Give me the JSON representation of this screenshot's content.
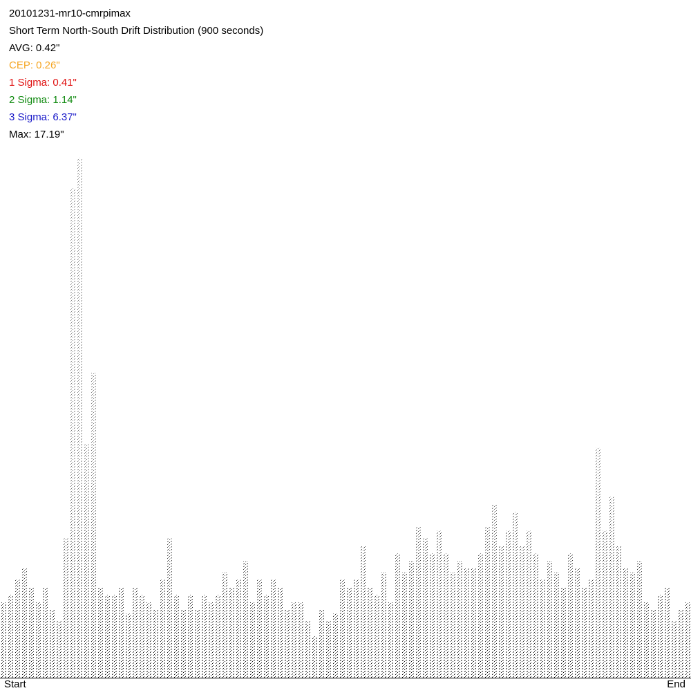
{
  "chart_data": {
    "type": "spikes",
    "title": "20101231-mr10-cmrpimax",
    "subtitle": "Short Term North-South Drift Distribution (900 seconds)",
    "annotations": [
      {
        "text": "AVG: 0.42\"",
        "color": "#000000"
      },
      {
        "text": "CEP: 0.26\"",
        "color": "#f5a623"
      },
      {
        "text": "1 Sigma: 0.41\"",
        "color": "#e01010"
      },
      {
        "text": "2 Sigma: 1.14\"",
        "color": "#108a10"
      },
      {
        "text": "3 Sigma: 6.37\"",
        "color": "#1818c8"
      },
      {
        "text": "Max: 17.19\"",
        "color": "#000000"
      }
    ],
    "x_labels": [
      "Start",
      "End"
    ],
    "color": "#000000",
    "ylim": [
      0,
      18
    ],
    "values": [
      2.0,
      2.2,
      2.6,
      2.9,
      2.4,
      2.0,
      2.4,
      1.8,
      1.5,
      3.7,
      13.0,
      13.8,
      6.2,
      8.1,
      2.4,
      2.2,
      2.2,
      2.4,
      1.7,
      2.4,
      2.2,
      2.0,
      1.8,
      2.6,
      3.7,
      2.2,
      1.8,
      2.2,
      1.8,
      2.2,
      2.0,
      2.2,
      2.8,
      2.4,
      2.6,
      3.1,
      2.0,
      2.6,
      2.2,
      2.6,
      2.4,
      1.8,
      2.0,
      2.0,
      1.5,
      1.1,
      1.8,
      1.5,
      1.7,
      2.6,
      2.4,
      2.6,
      3.5,
      2.4,
      2.2,
      2.8,
      2.0,
      3.3,
      2.8,
      3.1,
      4.0,
      3.7,
      3.3,
      3.9,
      3.3,
      2.8,
      3.1,
      2.9,
      2.9,
      3.3,
      4.0,
      4.6,
      3.5,
      3.9,
      4.4,
      3.5,
      3.9,
      3.3,
      2.6,
      3.1,
      2.8,
      2.4,
      3.3,
      2.9,
      2.4,
      2.6,
      6.1,
      3.9,
      4.8,
      3.5,
      2.9,
      2.8,
      3.1,
      2.0,
      1.8,
      2.2,
      2.4,
      1.5,
      1.8,
      2.0
    ]
  }
}
